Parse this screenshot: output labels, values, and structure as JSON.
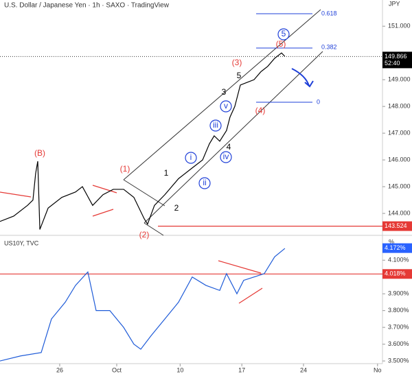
{
  "header": {
    "title": "U.S. Dollar / Japanese Yen · 1h · SAXO · TradingView",
    "currency": "JPY"
  },
  "chart_data": [
    {
      "type": "line",
      "color": "#000000",
      "x": [
        0,
        1.11,
        2.23,
        2.67,
        2.89,
        3.06,
        3.23,
        3.9,
        5.01,
        6.12,
        6.68,
        7.51,
        8.35,
        9.18,
        10.02,
        10.85,
        11.69,
        11.96,
        12.52,
        13.36,
        14.47,
        15.58,
        16.42,
        16.97,
        17.36,
        17.81,
        18.36,
        18.64,
        19.03,
        19.48,
        20.03,
        20.59,
        21.15,
        21.7,
        22.26,
        22.82,
        23.09
      ],
      "values": [
        143.7,
        143.9,
        144.3,
        144.5,
        145.5,
        145.95,
        143.4,
        144.2,
        144.6,
        144.8,
        145.0,
        144.3,
        144.7,
        144.9,
        144.9,
        144.6,
        143.8,
        143.6,
        144.3,
        144.7,
        145.3,
        145.7,
        146.0,
        146.6,
        146.9,
        146.7,
        147.1,
        147.6,
        148.0,
        148.8,
        148.9,
        149.0,
        149.3,
        149.5,
        149.8,
        150.0,
        149.87
      ],
      "xlim": [
        0,
        31
      ],
      "ylim": [
        143.18,
        151.98
      ],
      "yticks": [
        {
          "value": 144,
          "label": "144.000"
        },
        {
          "value": 145,
          "label": "145.000"
        },
        {
          "value": 146,
          "label": "146.000"
        },
        {
          "value": 147,
          "label": "147.000"
        },
        {
          "value": 148,
          "label": "148.000"
        },
        {
          "value": 149,
          "label": "149.000"
        },
        {
          "value": 151,
          "label": "151.000"
        }
      ],
      "last_price": 149.866,
      "countdown": "52:40",
      "level": 143.524,
      "level_color": "#e53935",
      "annotations": [
        {
          "text": "(B)",
          "color": "#e53935"
        },
        {
          "text": "(1)",
          "color": "#e53935"
        },
        {
          "text": "1",
          "color": "#000000"
        },
        {
          "text": "2",
          "color": "#000000"
        },
        {
          "text": "(2)",
          "color": "#e53935"
        },
        {
          "text": "i",
          "color": "#1e3fd8"
        },
        {
          "text": "ii",
          "color": "#1e3fd8"
        },
        {
          "text": "iii",
          "color": "#1e3fd8"
        },
        {
          "text": "iv",
          "color": "#1e3fd8"
        },
        {
          "text": "v",
          "color": "#1e3fd8"
        },
        {
          "text": "3",
          "color": "#000000"
        },
        {
          "text": "4",
          "color": "#000000"
        },
        {
          "text": "5",
          "color": "#000000"
        },
        {
          "text": "(3)",
          "color": "#e53935"
        },
        {
          "text": "(4)",
          "color": "#e53935"
        },
        {
          "text": "(5)",
          "color": "#e53935"
        },
        {
          "text": "5",
          "color": "#1e3fd8"
        },
        {
          "text": "0.618",
          "color": "#1e3fd8"
        },
        {
          "text": "0.382",
          "color": "#1e3fd8"
        },
        {
          "text": "0",
          "color": "#1e3fd8"
        }
      ]
    },
    {
      "type": "line",
      "title": "US10Y, TVC",
      "unit": "%",
      "color": "#1e5bd8",
      "x": [
        0,
        1.67,
        3.34,
        4.17,
        5.29,
        6.12,
        7.12,
        7.79,
        8.9,
        10.02,
        10.85,
        11.41,
        12.24,
        13.36,
        14.47,
        15.58,
        16.69,
        17.81,
        18.36,
        19.2,
        19.75,
        20.59,
        21.42,
        22.26,
        23.09
      ],
      "values": [
        3.5,
        3.53,
        3.55,
        3.75,
        3.85,
        3.95,
        4.03,
        3.8,
        3.8,
        3.7,
        3.6,
        3.57,
        3.65,
        3.75,
        3.85,
        4.0,
        3.95,
        3.92,
        4.02,
        3.9,
        3.98,
        4.0,
        4.02,
        4.12,
        4.17
      ],
      "xlim": [
        0,
        31
      ],
      "ylim": [
        3.484,
        4.248
      ],
      "xticks": [
        {
          "value": 4.84,
          "label": "26"
        },
        {
          "value": 9.46,
          "label": "Oct"
        },
        {
          "value": 14.6,
          "label": "10"
        },
        {
          "value": 19.6,
          "label": "17"
        },
        {
          "value": 24.6,
          "label": "24"
        },
        {
          "value": 30.6,
          "label": "No"
        }
      ],
      "yticks": [
        {
          "value": 3.5,
          "label": "3.500%"
        },
        {
          "value": 3.6,
          "label": "3.600%"
        },
        {
          "value": 3.7,
          "label": "3.700%"
        },
        {
          "value": 3.8,
          "label": "3.800%"
        },
        {
          "value": 3.9,
          "label": "3.900%"
        },
        {
          "value": 4.1,
          "label": "4.100%"
        }
      ],
      "last_price": {
        "value": 4.172,
        "label": "4.172%"
      },
      "level": {
        "value": 4.018,
        "label": "4.018%"
      },
      "level_color": "#e53935"
    }
  ]
}
